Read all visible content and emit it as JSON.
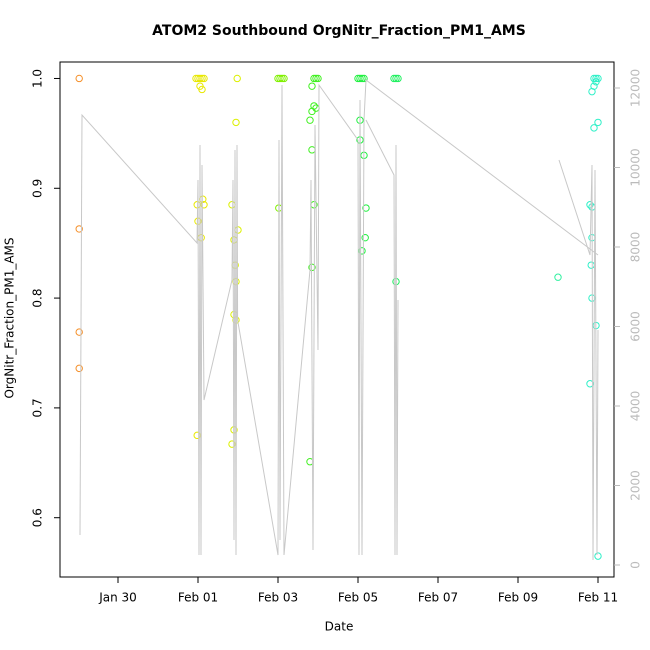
{
  "chart_data": {
    "type": "scatter",
    "title": "ATOM2 Southbound OrgNitr_Fraction_PM1_AMS",
    "x_label": "Date",
    "y_label": "OrgNitr_Fraction_PM1_AMS",
    "xlim": [
      28.55,
      42.4
    ],
    "xticks": [
      {
        "value": 30,
        "label": "Jan 30"
      },
      {
        "value": 32,
        "label": "Feb 01"
      },
      {
        "value": 34,
        "label": "Feb 03"
      },
      {
        "value": 36,
        "label": "Feb 05"
      },
      {
        "value": 38,
        "label": "Feb 07"
      },
      {
        "value": 40,
        "label": "Feb 09"
      },
      {
        "value": 42,
        "label": "Feb 11"
      }
    ],
    "ylim": [
      0.546,
      1.015
    ],
    "yticks": [
      0.6,
      0.7,
      0.8,
      0.9,
      {
        "value": 1,
        "label": "1.0"
      }
    ],
    "y2lim": [
      -302,
      12654
    ],
    "y2ticks": [
      0,
      2000,
      4000,
      6000,
      8000,
      10000,
      12000
    ],
    "y2_color": "#bbbbbb",
    "series": [
      {
        "color": "#f5902a",
        "x": [
          29.03,
          29.03,
          29.03,
          29.03
        ],
        "values": [
          1.0,
          0.863,
          0.769,
          0.736
        ]
      },
      {
        "color": "#e8e800",
        "x": [
          31.95,
          32.0,
          32.05,
          32.1,
          32.15,
          32.05,
          32.1,
          32.12,
          32.15,
          32.0,
          32.08,
          31.98,
          31.98
        ],
        "values": [
          1.0,
          1.0,
          1.0,
          1.0,
          1.0,
          0.993,
          0.99,
          0.89,
          0.885,
          0.87,
          0.855,
          0.885,
          0.675
        ]
      },
      {
        "color": "#dcf000",
        "x": [
          32.98,
          32.95,
          32.85,
          33.0,
          32.9,
          32.93,
          32.95,
          32.9,
          32.95,
          32.9,
          32.85
        ],
        "values": [
          1.0,
          0.96,
          0.885,
          0.862,
          0.853,
          0.83,
          0.815,
          0.785,
          0.78,
          0.68,
          0.667
        ]
      },
      {
        "color": "#80f000",
        "x": [
          34.0,
          34.05,
          34.1,
          34.15,
          34.02
        ],
        "values": [
          1.0,
          1.0,
          1.0,
          1.0,
          0.882
        ]
      },
      {
        "color": "#40f020",
        "x": [
          34.9,
          34.95,
          35.0,
          34.85,
          34.9,
          34.95,
          34.85,
          34.8,
          34.85,
          34.9,
          34.85,
          34.8
        ],
        "values": [
          1.0,
          1.0,
          1.0,
          0.993,
          0.975,
          0.973,
          0.97,
          0.962,
          0.935,
          0.885,
          0.828,
          0.651
        ]
      },
      {
        "color": "#20f040",
        "x": [
          36.0,
          36.05,
          36.1,
          36.15,
          36.05,
          36.05,
          36.15,
          36.2,
          36.18,
          36.1
        ],
        "values": [
          1.0,
          1.0,
          1.0,
          1.0,
          0.962,
          0.944,
          0.93,
          0.882,
          0.855,
          0.843
        ]
      },
      {
        "color": "#20f060",
        "x": [
          36.9,
          36.95,
          37.0,
          36.95
        ],
        "values": [
          1.0,
          1.0,
          1.0,
          0.815
        ]
      },
      {
        "color": "#30f0a0",
        "x": [
          41.0
        ],
        "values": [
          0.819
        ]
      },
      {
        "color": "#30f0c8",
        "x": [
          41.9,
          41.95,
          42.0,
          41.95,
          41.85,
          41.9,
          42.0,
          41.9,
          41.8,
          41.85,
          41.85,
          41.83,
          41.85,
          41.95,
          41.8,
          42.0
        ],
        "values": [
          1.0,
          1.0,
          1.0,
          0.997,
          0.988,
          0.993,
          0.96,
          0.955,
          0.885,
          0.883,
          0.855,
          0.83,
          0.8,
          0.775,
          0.722,
          0.565
        ]
      },
      {
        "type": "line",
        "axis": "y2",
        "color": "#c8c8c8",
        "x": [
          29.05,
          29.1,
          31.975,
          32.0,
          32.025,
          32.05,
          32.075,
          32.1,
          32.15,
          32.85,
          32.875,
          32.9,
          32.925,
          32.95,
          32.975,
          32.99,
          34.0,
          34.025,
          34.05,
          34.1,
          34.15,
          34.8,
          34.825,
          34.875,
          34.925,
          35.0,
          35.025,
          36.0,
          36.025,
          36.05,
          36.1,
          36.15,
          36.2,
          42.0,
          null,
          36.2,
          36.9,
          36.925,
          36.95,
          36.975,
          37.0,
          null,
          41.025,
          41.8,
          41.85,
          41.875,
          41.925,
          41.975,
          42.0
        ],
        "values": [
          755,
          11321,
          8101,
          9686,
          252,
          10566,
          252,
          10063,
          4151,
          7170,
          9686,
          629,
          10440,
          252,
          10566,
          6164,
          252,
          10692,
          629,
          12075,
          252,
          7421,
          9686,
          377,
          11069,
          5409,
          12075,
          10692,
          252,
          11698,
          252,
          11195,
          12201,
          7799,
          null,
          11195,
          9811,
          252,
          10566,
          252,
          6667,
          null,
          10189,
          7799,
          10063,
          126,
          9937,
          252,
          5912
        ]
      }
    ]
  }
}
